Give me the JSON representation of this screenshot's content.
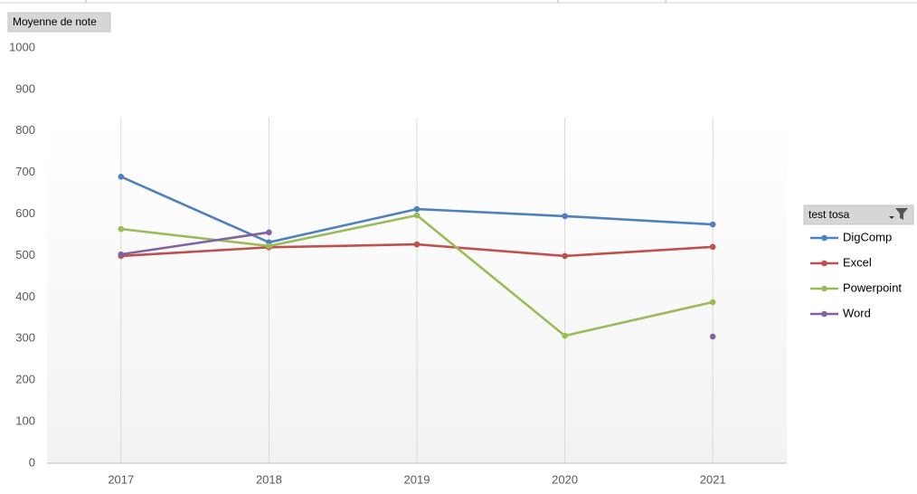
{
  "chart_data": {
    "type": "line",
    "value_field_button": "Moyenne de note",
    "legend_title": "test tosa",
    "categories": [
      "2017",
      "2018",
      "2019",
      "2020",
      "2021"
    ],
    "series": [
      {
        "name": "DigComp",
        "color": "#4f81bd",
        "values": [
          690,
          532,
          612,
          595,
          575
        ]
      },
      {
        "name": "Excel",
        "color": "#c0504d",
        "values": [
          499,
          520,
          527,
          499,
          521
        ]
      },
      {
        "name": "Powerpoint",
        "color": "#9bbb59",
        "values": [
          564,
          523,
          597,
          307,
          388
        ]
      },
      {
        "name": "Word",
        "color": "#8064a2",
        "values": [
          503,
          556,
          null,
          null,
          305
        ]
      }
    ],
    "ylim": [
      0,
      1000
    ],
    "yticks": [
      0,
      100,
      200,
      300,
      400,
      500,
      600,
      700,
      800,
      900,
      1000
    ],
    "legend": "right"
  }
}
